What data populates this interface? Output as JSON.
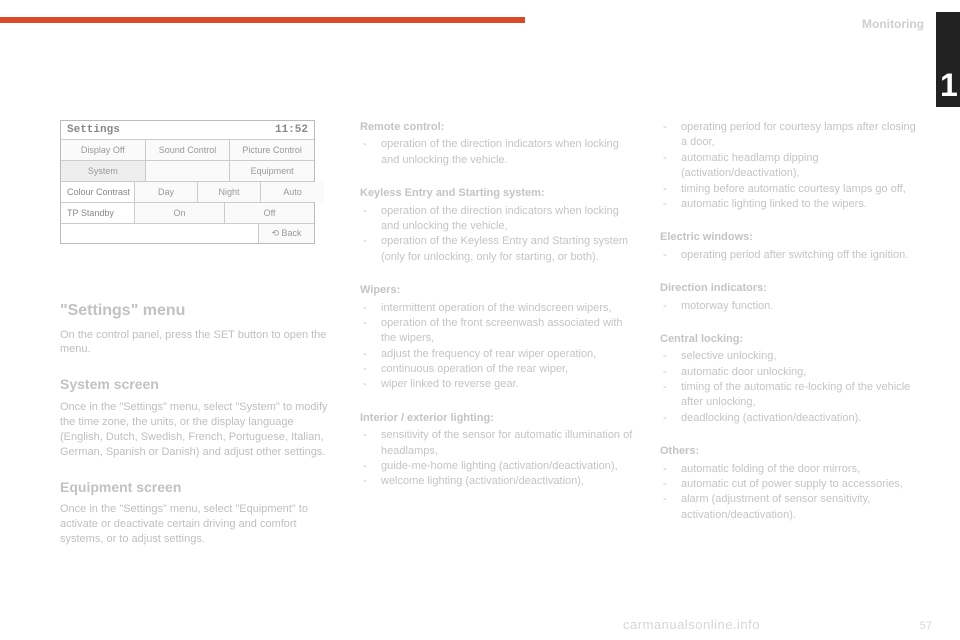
{
  "colors": {
    "accent": "#d94a2a",
    "tab_bg": "#222222",
    "text_faint": "#c4c4c4",
    "text_heading": "#c2c2c2",
    "panel_border": "#cccccc",
    "panel_text": "#999999",
    "page_bg": "#ffffff"
  },
  "header": {
    "section": "Monitoring",
    "chapter_number": "1"
  },
  "settings_panel": {
    "title": "Settings",
    "clock": "11:52",
    "rows": [
      {
        "cells": [
          "Display Off",
          "Sound Control",
          "Picture Control"
        ]
      },
      {
        "cells": [
          "System",
          "",
          "Equipment"
        ],
        "selected_index": 0
      },
      {
        "label": "Colour Contrast",
        "cells": [
          "Day",
          "Night",
          "Auto"
        ]
      },
      {
        "label": "TP Standby",
        "cells": [
          "On",
          "Off"
        ]
      }
    ],
    "back_label": "⟲ Back"
  },
  "left": {
    "h_settings": "\"Settings\" menu",
    "p_settings": "On the control panel, press the SET button to open the menu.",
    "h_system": "System screen",
    "p_system": "Once in the \"Settings\" menu, select \"System\" to modify the time zone, the units, or the display language (English, Dutch, Swedish, French, Portuguese, Italian, German, Spanish or Danish) and adjust other settings.",
    "h_equipment": "Equipment screen",
    "p_equipment": "Once in the \"Settings\" menu, select \"Equipment\" to activate or deactivate certain driving and comfort systems, or to adjust settings."
  },
  "mid": {
    "remote_title": "Remote control:",
    "remote_items": [
      "operation of the direction indicators when locking and unlocking the vehicle."
    ],
    "keyless_title": "Keyless Entry and Starting system:",
    "keyless_items": [
      "operation of the direction indicators when locking and unlocking the vehicle,",
      "operation of the Keyless Entry and Starting system (only for unlocking, only for starting, or both)."
    ],
    "wipers_title": "Wipers:",
    "wipers_items": [
      "intermittent operation of the windscreen wipers,",
      "operation of the front screenwash associated with the wipers,",
      "adjust the frequency of rear wiper operation,",
      "continuous operation of the rear wiper,",
      "wiper linked to reverse gear."
    ],
    "lighting_title": "Interior / exterior lighting:",
    "lighting_items": [
      "sensitivity of the sensor for automatic illumination of headlamps,",
      "guide-me-home lighting (activation/deactivation),",
      "welcome lighting (activation/deactivation),"
    ]
  },
  "right": {
    "lighting_cont_items": [
      "operating period for courtesy lamps after closing a door,",
      "automatic headlamp dipping (activation/deactivation),",
      "timing before automatic courtesy lamps go off,",
      "automatic lighting linked to the wipers."
    ],
    "windows_title": "Electric windows:",
    "windows_items": [
      "operating period after switching off the ignition."
    ],
    "direction_title": "Direction indicators:",
    "direction_items": [
      "motorway function."
    ],
    "central_title": "Central locking:",
    "central_items": [
      "selective unlocking,",
      "automatic door unlocking,",
      "timing of the automatic re-locking of the vehicle after unlocking,",
      "deadlocking (activation/deactivation)."
    ],
    "others_title": "Others:",
    "others_items": [
      "automatic folding of the door mirrors,",
      "automatic cut of power supply to accessories,",
      "alarm (adjustment of sensor sensitivity, activation/deactivation)."
    ]
  },
  "footer": {
    "watermark": "carmanualsonline.info",
    "page_number": "57"
  }
}
